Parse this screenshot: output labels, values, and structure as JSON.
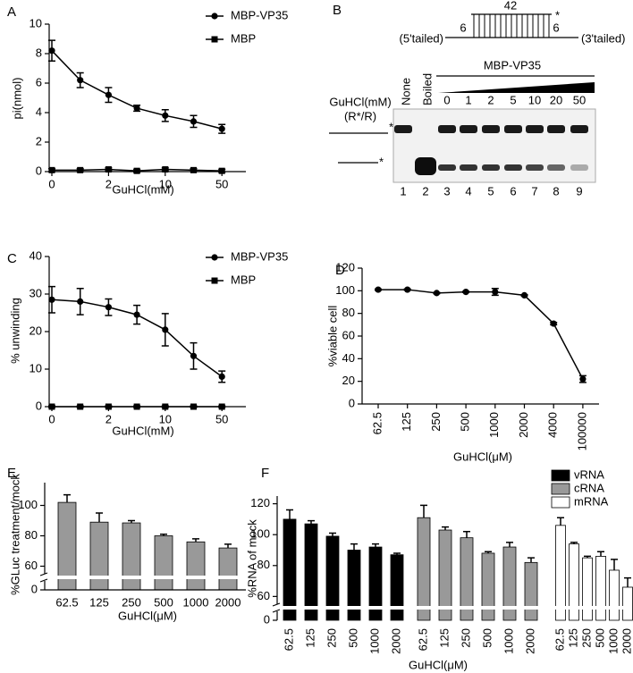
{
  "chart_data": [
    {
      "type": "line",
      "panel": "A",
      "x_label": "GuHCl(mM)",
      "y_label": "pi(nmol)",
      "categories": [
        "0",
        null,
        "2",
        null,
        "10",
        null,
        "50"
      ],
      "ylim": [
        0,
        10
      ],
      "yticks": [
        0,
        2,
        4,
        6,
        8,
        10
      ],
      "legend": "upper right",
      "series": [
        {
          "name": "MBP-VP35",
          "marker": "circle",
          "color": "#000000",
          "values": [
            8.2,
            6.2,
            5.2,
            4.3,
            3.8,
            3.4,
            2.9
          ],
          "errors": [
            0.7,
            0.5,
            0.5,
            0.2,
            0.4,
            0.4,
            0.3
          ]
        },
        {
          "name": "MBP",
          "marker": "square",
          "color": "#000000",
          "values": [
            0.1,
            0.1,
            0.15,
            0.05,
            0.15,
            0.1,
            0.05
          ],
          "errors": [
            0.1,
            0.1,
            0.1,
            0.1,
            0.1,
            0.1,
            0.1
          ]
        }
      ]
    },
    {
      "type": "line",
      "panel": "C",
      "x_label": "GuHCl(mM)",
      "y_label": "% unwinding",
      "categories": [
        "0",
        null,
        "2",
        null,
        "10",
        null,
        "50"
      ],
      "ylim": [
        0,
        40
      ],
      "yticks": [
        0,
        10,
        20,
        30,
        40
      ],
      "legend": "upper right",
      "series": [
        {
          "name": "MBP-VP35",
          "marker": "circle",
          "color": "#000000",
          "values": [
            28.5,
            28,
            26.5,
            24.5,
            20.5,
            13.5,
            8
          ],
          "errors": [
            3.5,
            3.5,
            2.2,
            2.5,
            4.3,
            3.5,
            1.5
          ]
        },
        {
          "name": "MBP",
          "marker": "square",
          "color": "#000000",
          "values": [
            0,
            0,
            0,
            0,
            0,
            0,
            0
          ],
          "errors": [
            0.2,
            0.2,
            0.2,
            0.2,
            0.2,
            0.2,
            0.2
          ]
        }
      ]
    },
    {
      "type": "line",
      "panel": "D",
      "x_label": "GuHCl(μM)",
      "y_label": "%viable cell",
      "categories": [
        "62.5",
        "125",
        "250",
        "500",
        "1000",
        "2000",
        "4000",
        "100000"
      ],
      "ylim": [
        0,
        120
      ],
      "yticks": [
        0,
        20,
        40,
        60,
        80,
        100,
        120
      ],
      "series": [
        {
          "marker": "circle",
          "color": "#000000",
          "values": [
            101,
            101,
            98,
            99,
            99,
            96,
            71,
            22
          ],
          "errors": [
            0.5,
            0.5,
            0.5,
            0.5,
            3,
            0.5,
            1,
            3
          ]
        }
      ]
    },
    {
      "type": "bar",
      "panel": "E",
      "x_label": "GuHCl(μM)",
      "y_label": "%GLuc treatment/mock",
      "categories": [
        "62.5",
        "125",
        "250",
        "500",
        "1000",
        "2000"
      ],
      "values": [
        102,
        89,
        88.5,
        80,
        76,
        72
      ],
      "errors": [
        5,
        6,
        1.5,
        1,
        2,
        2.5
      ],
      "color": "#999999",
      "ylim": [
        0,
        115
      ],
      "ybreak": [
        5,
        55
      ],
      "yticks": [
        0,
        60,
        80,
        100
      ]
    },
    {
      "type": "grouped_bar",
      "panel": "F",
      "x_label": "GuHCl(μM)",
      "y_label": "%RNA of mock",
      "categories": [
        "62.5",
        "125",
        "250",
        "500",
        "1000",
        "2000"
      ],
      "ylim": [
        0,
        125
      ],
      "ybreak": [
        5,
        55
      ],
      "yticks": [
        0,
        60,
        80,
        100,
        120
      ],
      "legend": "upper right",
      "series": [
        {
          "name": "vRNA",
          "color": "#000000",
          "values": [
            110,
            107,
            99,
            90,
            92,
            87
          ],
          "errors": [
            6,
            2,
            2,
            4,
            2,
            1
          ]
        },
        {
          "name": "cRNA",
          "color": "#999999",
          "values": [
            111,
            103,
            98,
            88,
            92,
            82
          ],
          "errors": [
            8,
            2,
            4,
            1,
            3,
            3
          ]
        },
        {
          "name": "mRNA",
          "color": "#ffffff",
          "values": [
            106,
            94,
            85,
            86,
            77,
            66
          ],
          "errors": [
            5,
            1,
            1,
            3,
            7,
            6
          ]
        }
      ]
    }
  ],
  "panel_b": {
    "panel": "B",
    "length": "42",
    "left_tail": "6",
    "right_tail": "6",
    "star": "*",
    "left_label": "(5'tailed)",
    "right_label": "(3'tailed)",
    "none": "None",
    "boiled": "Boiled",
    "protein": "MBP-VP35",
    "condition": "GuHCl(mM)",
    "substrate": "(R*/R)",
    "concentrations": [
      "0",
      "1",
      "2",
      "5",
      "10",
      "20",
      "50"
    ],
    "lanes": [
      "1",
      "2",
      "3",
      "4",
      "5",
      "6",
      "7",
      "8",
      "9"
    ]
  }
}
